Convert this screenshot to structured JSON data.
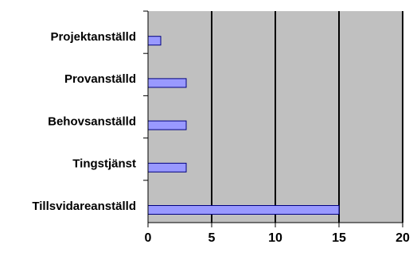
{
  "chart_data": {
    "type": "bar",
    "orientation": "horizontal",
    "categories": [
      "Projektanställd",
      "Provanställd",
      "Behovsanställd",
      "Tingstjänst",
      "Tillsvidareanställd"
    ],
    "values": [
      1,
      3,
      3,
      3,
      15
    ],
    "xlim": [
      0,
      20
    ],
    "xticks": [
      "0",
      "5",
      "10",
      "15",
      "20"
    ],
    "grid": "vertical",
    "legend": "none",
    "colors": {
      "plot_bg": "#c0c0c0",
      "bar_fill": "#9999ff",
      "bar_stroke": "#000080",
      "grid": "#000000"
    }
  }
}
